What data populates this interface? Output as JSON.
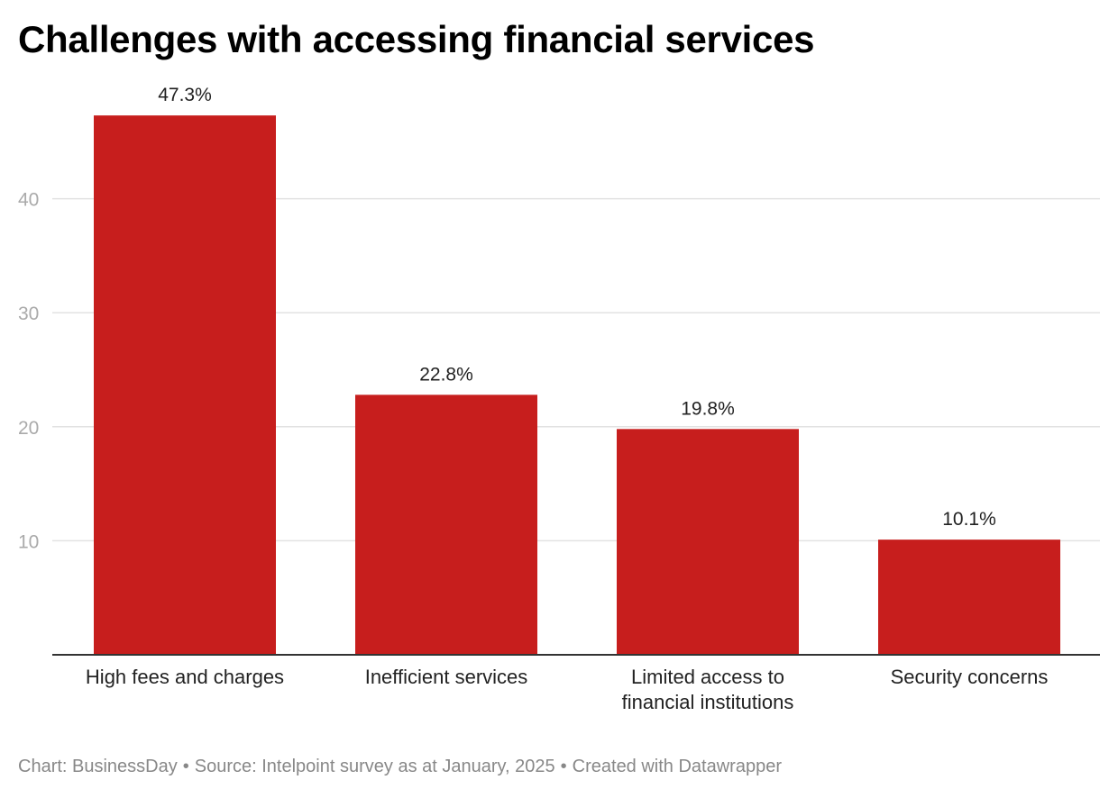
{
  "chart_data": {
    "type": "bar",
    "title": "Challenges with accessing financial services",
    "categories": [
      [
        "High fees and charges"
      ],
      [
        "Inefficient services"
      ],
      [
        "Limited access to",
        "financial institutions"
      ],
      [
        "Security concerns"
      ]
    ],
    "values": [
      47.3,
      22.8,
      19.8,
      10.1
    ],
    "value_labels": [
      "47.3%",
      "22.8%",
      "19.8%",
      "10.1%"
    ],
    "yticks": [
      10,
      20,
      30,
      40
    ],
    "ytick_labels": [
      "10",
      "20",
      "30",
      "40"
    ],
    "ylim": [
      0,
      50
    ],
    "xlabel": "",
    "ylabel": "",
    "grid": true,
    "bar_color": "#c71e1d"
  },
  "footer": {
    "chart_credit": "Chart: BusinessDay",
    "source": "Source: Intelpoint survey as at January, 2025",
    "created_with": "Created with Datawrapper",
    "separator": "•"
  },
  "colors": {
    "bar": "#c71e1d",
    "grid": "#e2e2e2",
    "axis": "#333333",
    "tick_text": "#aaaaaa",
    "footer_text": "#888888"
  }
}
